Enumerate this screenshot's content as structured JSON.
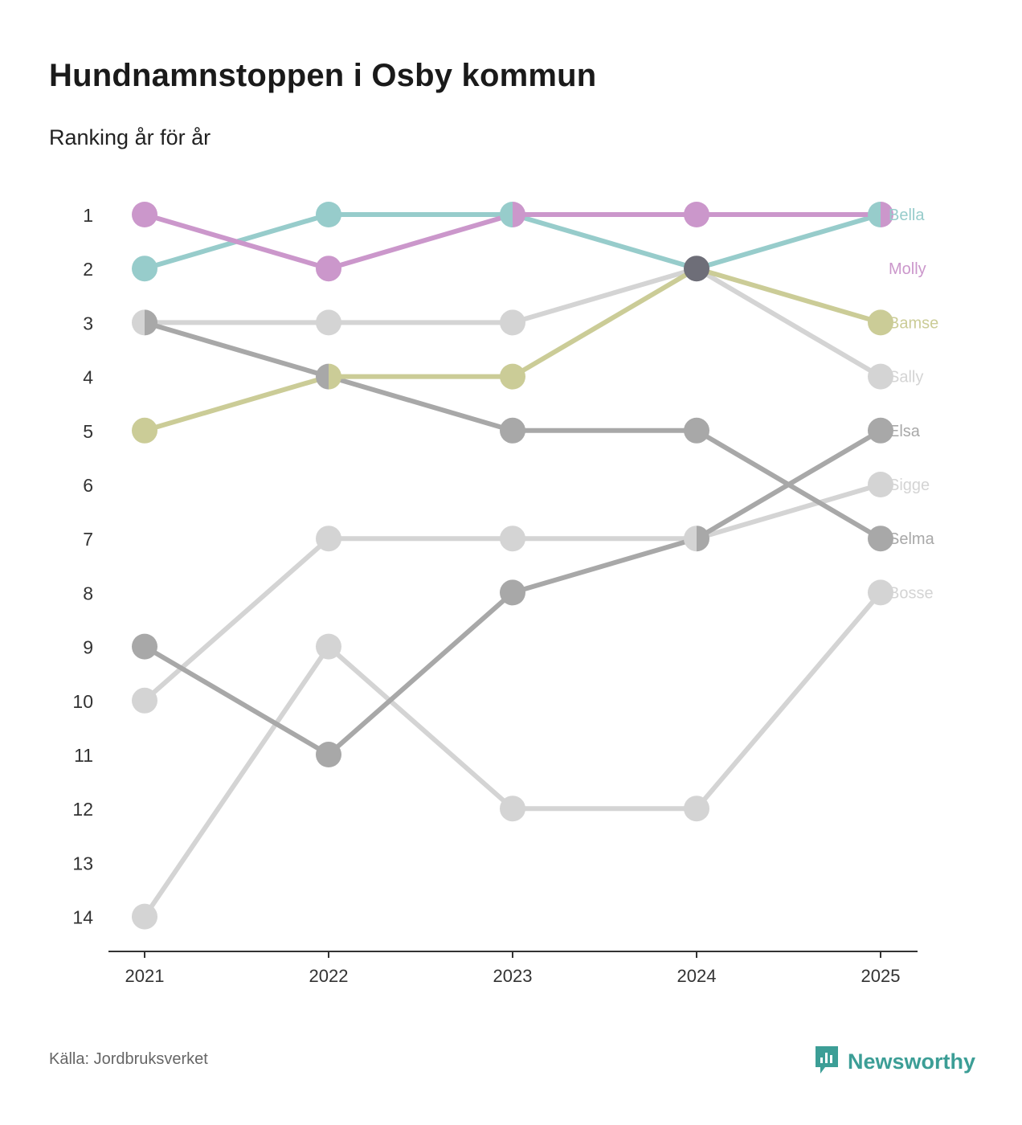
{
  "title": "Hundnamnstoppen i Osby kommun",
  "subtitle": "Ranking år för år",
  "source": "Källa: Jordbruksverket",
  "brand": {
    "name": "Newsworthy",
    "icon": "newsworthy-logo-icon",
    "color": "#3c9e96"
  },
  "colors": {
    "axis": "#333333",
    "tick_text": "#333333",
    "highlight_2024": "#6e6e78"
  },
  "chart_data": {
    "type": "line",
    "title": "Hundnamnstoppen i Osby kommun",
    "subtitle": "Ranking år för år",
    "xlabel": "",
    "ylabel": "",
    "x": [
      "2021",
      "2022",
      "2023",
      "2024",
      "2025"
    ],
    "y_ticks": [
      "1",
      "2",
      "3",
      "4",
      "5",
      "6",
      "7",
      "8",
      "9",
      "10",
      "11",
      "12",
      "13",
      "14"
    ],
    "ylim": [
      1,
      14
    ],
    "y_inverted": true,
    "grid": false,
    "legend": "end labels, right",
    "series": [
      {
        "name": "Bosse",
        "color": "#d4d4d4",
        "values": [
          14,
          9,
          12,
          12,
          8
        ]
      },
      {
        "name": "Sigge",
        "color": "#d4d4d4",
        "values": [
          10,
          7,
          7,
          7,
          6
        ]
      },
      {
        "name": "Sally",
        "color": "#d4d4d4",
        "values": [
          3,
          3,
          3,
          2,
          4
        ]
      },
      {
        "name": "Selma",
        "color": "#a8a8a8",
        "values": [
          3,
          4,
          5,
          5,
          7
        ]
      },
      {
        "name": "Elsa",
        "color": "#a8a8a8",
        "values": [
          9,
          11,
          8,
          7,
          5
        ]
      },
      {
        "name": "Bamse",
        "color": "#cbcc97",
        "values": [
          5,
          4,
          4,
          2,
          3
        ]
      },
      {
        "name": "Bella",
        "color": "#97cccb",
        "values": [
          2,
          1,
          1,
          2,
          1
        ]
      },
      {
        "name": "Molly",
        "color": "#cb97cb",
        "values": [
          1,
          2,
          1,
          1,
          1
        ]
      }
    ]
  }
}
